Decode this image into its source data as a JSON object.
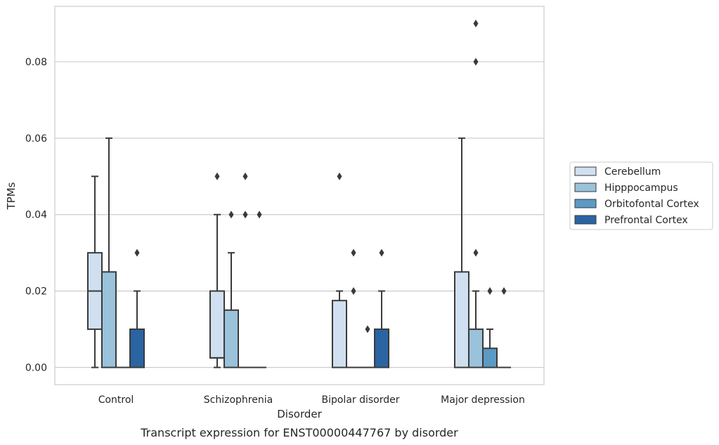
{
  "chart_data": {
    "type": "box",
    "title": "",
    "caption": "Transcript expression for ENST00000447767 by disorder",
    "xlabel": "Disorder",
    "ylabel": "TPMs",
    "ylim": [
      -0.0045,
      0.0945
    ],
    "yticks": [
      0.0,
      0.02,
      0.04,
      0.06,
      0.08
    ],
    "ytick_labels": [
      "0.00",
      "0.02",
      "0.04",
      "0.06",
      "0.08"
    ],
    "grid": "horizontal",
    "legend_position": "right",
    "categories": [
      "Control",
      "Schizophrenia",
      "Bipolar disorder",
      "Major depression"
    ],
    "series": [
      {
        "name": "Cerebellum",
        "color": "#d0e0f0",
        "boxes": [
          {
            "whislo": 0.0,
            "q1": 0.01,
            "med": 0.02,
            "q3": 0.03,
            "whishi": 0.05,
            "fliers": []
          },
          {
            "whislo": 0.0,
            "q1": 0.0025,
            "med": 0.0025,
            "q3": 0.02,
            "whishi": 0.04,
            "fliers": [
              0.05
            ]
          },
          {
            "whislo": 0.0,
            "q1": 0.0,
            "med": 0.0,
            "q3": 0.0175,
            "whishi": 0.02,
            "fliers": [
              0.05
            ]
          },
          {
            "whislo": 0.0,
            "q1": 0.0,
            "med": 0.0,
            "q3": 0.025,
            "whishi": 0.06,
            "fliers": []
          }
        ]
      },
      {
        "name": "Hipppocampus",
        "color": "#9ac2db",
        "boxes": [
          {
            "whislo": 0.0,
            "q1": 0.0,
            "med": 0.0,
            "q3": 0.025,
            "whishi": 0.06,
            "fliers": []
          },
          {
            "whislo": 0.0,
            "q1": 0.0,
            "med": 0.0,
            "q3": 0.015,
            "whishi": 0.03,
            "fliers": [
              0.04
            ]
          },
          {
            "whislo": 0.0,
            "q1": 0.0,
            "med": 0.0,
            "q3": 0.0,
            "whishi": 0.0,
            "fliers": [
              0.02,
              0.03
            ]
          },
          {
            "whislo": 0.0,
            "q1": 0.0,
            "med": 0.0,
            "q3": 0.01,
            "whishi": 0.02,
            "fliers": [
              0.09,
              0.08,
              0.03
            ]
          }
        ]
      },
      {
        "name": "Orbitofontal Cortex",
        "color": "#5a9ac5",
        "boxes": [
          {
            "whislo": 0.0,
            "q1": 0.0,
            "med": 0.0,
            "q3": 0.0,
            "whishi": 0.0,
            "fliers": []
          },
          {
            "whislo": 0.0,
            "q1": 0.0,
            "med": 0.0,
            "q3": 0.0,
            "whishi": 0.0,
            "fliers": [
              0.05,
              0.04
            ]
          },
          {
            "whislo": 0.0,
            "q1": 0.0,
            "med": 0.0,
            "q3": 0.0,
            "whishi": 0.0,
            "fliers": [
              0.01
            ]
          },
          {
            "whislo": 0.0,
            "q1": 0.0,
            "med": 0.0,
            "q3": 0.005,
            "whishi": 0.01,
            "fliers": [
              0.02
            ]
          }
        ]
      },
      {
        "name": "Prefrontal Cortex",
        "color": "#2a64a3",
        "boxes": [
          {
            "whislo": 0.0,
            "q1": 0.0,
            "med": 0.0,
            "q3": 0.01,
            "whishi": 0.02,
            "fliers": [
              0.03
            ]
          },
          {
            "whislo": 0.0,
            "q1": 0.0,
            "med": 0.0,
            "q3": 0.0,
            "whishi": 0.0,
            "fliers": [
              0.04
            ]
          },
          {
            "whislo": 0.0,
            "q1": 0.0,
            "med": 0.0,
            "q3": 0.01,
            "whishi": 0.02,
            "fliers": [
              0.03
            ]
          },
          {
            "whislo": 0.0,
            "q1": 0.0,
            "med": 0.0,
            "q3": 0.0,
            "whishi": 0.0,
            "fliers": [
              0.02
            ]
          }
        ]
      }
    ]
  }
}
